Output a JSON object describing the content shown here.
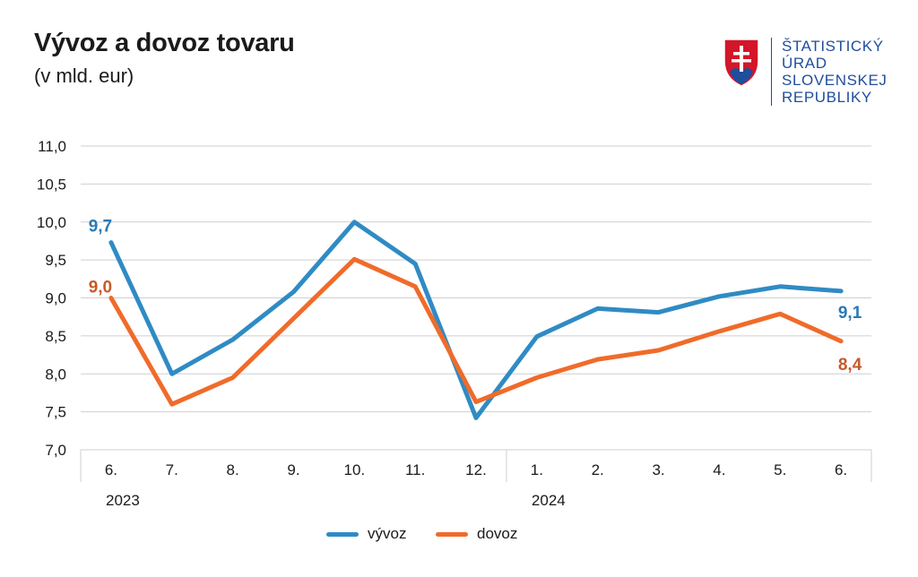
{
  "header": {
    "title": "Vývoz a dovoz tovaru",
    "subtitle": "(v mld. eur)"
  },
  "logo": {
    "lines": [
      "ŠTATISTICKÝ",
      "ÚRAD",
      "SLOVENSKEJ",
      "REPUBLIKY"
    ],
    "color": "#1f4e9c"
  },
  "chart_data": {
    "type": "line",
    "categories": [
      "6.",
      "7.",
      "8.",
      "9.",
      "10.",
      "11.",
      "12.",
      "1.",
      "2.",
      "3.",
      "4.",
      "5.",
      "6."
    ],
    "year_groups": [
      {
        "label": "2023",
        "start": 0,
        "end": 6
      },
      {
        "label": "2024",
        "start": 7,
        "end": 12
      }
    ],
    "ylim": [
      7.0,
      11.0
    ],
    "yticks": [
      "7,0",
      "7,5",
      "8,0",
      "8,5",
      "9,0",
      "9,5",
      "10,0",
      "10,5",
      "11,0"
    ],
    "grid": true,
    "legend_position": "bottom",
    "series": [
      {
        "name": "vývoz",
        "color": "#2f8bc4",
        "label_color": "#2a7ab5",
        "values": [
          9.73,
          8.0,
          8.45,
          9.08,
          10.0,
          9.45,
          7.42,
          8.49,
          8.86,
          8.81,
          9.02,
          9.15,
          9.09
        ],
        "start_label": "9,7",
        "end_label": "9,1"
      },
      {
        "name": "dovoz",
        "color": "#f06b2a",
        "label_color": "#c65a2b",
        "values": [
          9.0,
          7.6,
          7.95,
          8.73,
          9.51,
          9.15,
          7.63,
          7.95,
          8.19,
          8.31,
          8.56,
          8.79,
          8.43
        ],
        "start_label": "9,0",
        "end_label": "8,4"
      }
    ]
  }
}
